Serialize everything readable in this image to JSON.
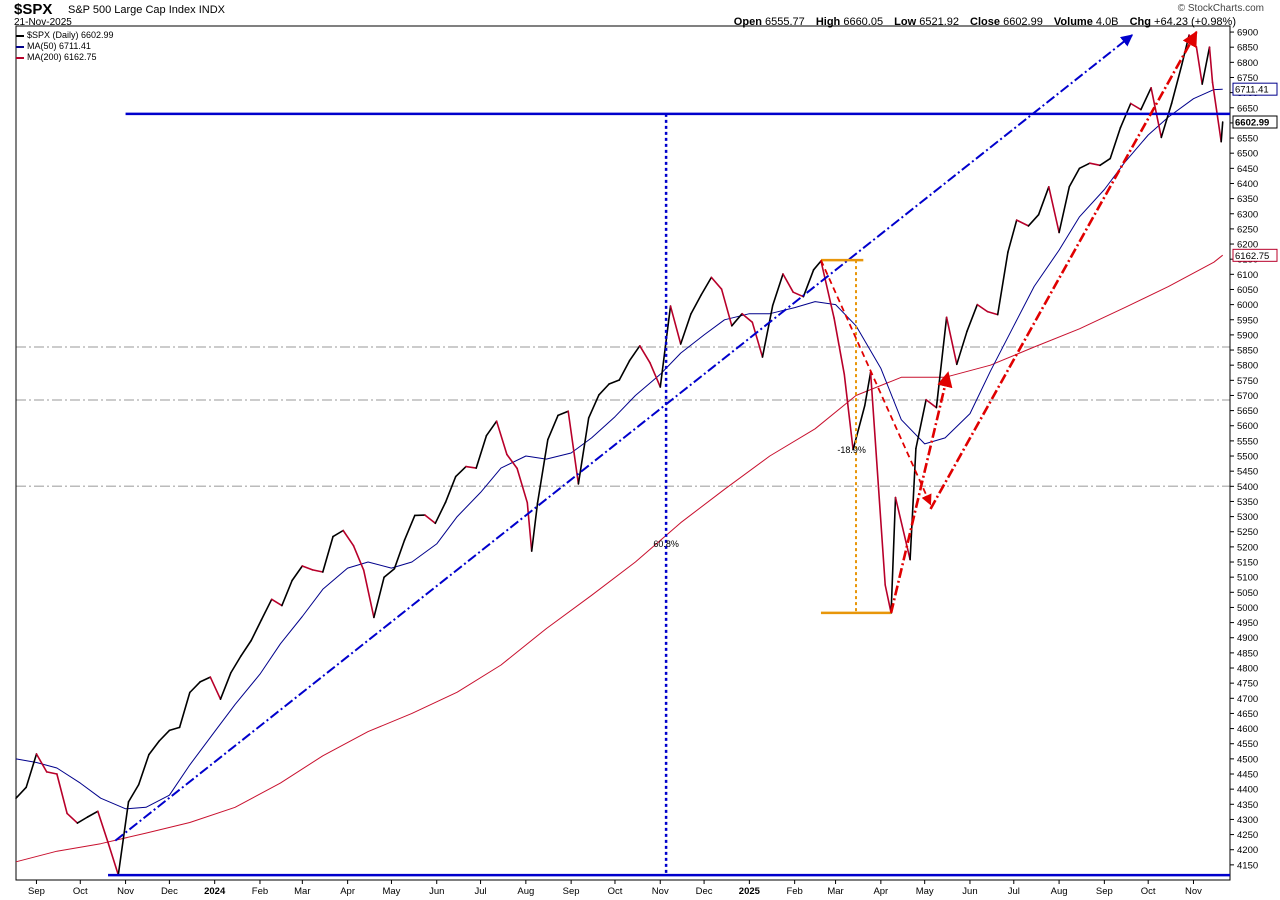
{
  "header": {
    "ticker": "$SPX",
    "name": "S&P 500 Large Cap Index",
    "exchange": "INDX",
    "date": "21-Nov-2025",
    "credit": "© StockCharts.com",
    "open_label": "Open",
    "open": "6555.77",
    "high_label": "High",
    "high": "6660.05",
    "low_label": "Low",
    "low": "6521.92",
    "close_label": "Close",
    "close": "6602.99",
    "volume_label": "Volume",
    "volume": "4.0B",
    "chg_label": "Chg",
    "chg": "+64.23 (+0.98%)"
  },
  "legend": [
    {
      "label": "$SPX (Daily) 6602.99",
      "color": "#000000"
    },
    {
      "label": "MA(50) 6711.41",
      "color": "#00008b"
    },
    {
      "label": "MA(200) 6162.75",
      "color": "#b8002a"
    }
  ],
  "colors": {
    "price_up": "#000000",
    "price_down": "#b8002a",
    "ma50": "#00008b",
    "ma200": "#c8102e",
    "blue_annot": "#0000cc",
    "red_annot": "#e00000",
    "orange_annot": "#e8960a",
    "grid": "#bbbbbb"
  },
  "annotations": {
    "gain_pct": "60.8%",
    "decline_pct": "-18.9%"
  },
  "chart_data": {
    "type": "line",
    "title": "$SPX S&P 500 Large Cap Index INDX",
    "y_scale": "linear",
    "ylim": [
      4100,
      6920
    ],
    "y_ticks": [
      4150,
      4200,
      4250,
      4300,
      4350,
      4400,
      4450,
      4500,
      4550,
      4600,
      4650,
      4700,
      4750,
      4800,
      4850,
      4900,
      4950,
      5000,
      5050,
      5100,
      5150,
      5200,
      5250,
      5300,
      5350,
      5400,
      5450,
      5500,
      5550,
      5600,
      5650,
      5700,
      5750,
      5800,
      5850,
      5900,
      5950,
      6000,
      6050,
      6100,
      6150,
      6200,
      6250,
      6300,
      6350,
      6400,
      6450,
      6500,
      6550,
      6600,
      6650,
      6700,
      6750,
      6800,
      6850,
      6900
    ],
    "x_ticks": [
      {
        "date": "2023-09-01",
        "label": "Sep"
      },
      {
        "date": "2023-10-01",
        "label": "Oct"
      },
      {
        "date": "2023-11-01",
        "label": "Nov"
      },
      {
        "date": "2023-12-01",
        "label": "Dec"
      },
      {
        "date": "2024-01-01",
        "label": "2024",
        "year": true
      },
      {
        "date": "2024-02-01",
        "label": "Feb"
      },
      {
        "date": "2024-03-01",
        "label": "Mar"
      },
      {
        "date": "2024-04-01",
        "label": "Apr"
      },
      {
        "date": "2024-05-01",
        "label": "May"
      },
      {
        "date": "2024-06-01",
        "label": "Jun"
      },
      {
        "date": "2024-07-01",
        "label": "Jul"
      },
      {
        "date": "2024-08-01",
        "label": "Aug"
      },
      {
        "date": "2024-09-01",
        "label": "Sep"
      },
      {
        "date": "2024-10-01",
        "label": "Oct"
      },
      {
        "date": "2024-11-01",
        "label": "Nov"
      },
      {
        "date": "2024-12-01",
        "label": "Dec"
      },
      {
        "date": "2025-01-01",
        "label": "2025",
        "year": true
      },
      {
        "date": "2025-02-01",
        "label": "Feb"
      },
      {
        "date": "2025-03-01",
        "label": "Mar"
      },
      {
        "date": "2025-04-01",
        "label": "Apr"
      },
      {
        "date": "2025-05-01",
        "label": "May"
      },
      {
        "date": "2025-06-01",
        "label": "Jun"
      },
      {
        "date": "2025-07-01",
        "label": "Jul"
      },
      {
        "date": "2025-08-01",
        "label": "Aug"
      },
      {
        "date": "2025-09-01",
        "label": "Sep"
      },
      {
        "date": "2025-10-01",
        "label": "Oct"
      },
      {
        "date": "2025-11-01",
        "label": "Nov"
      }
    ],
    "series": [
      {
        "name": "$SPX (Daily)",
        "points": [
          [
            "2023-08-18",
            4370
          ],
          [
            "2023-08-25",
            4406
          ],
          [
            "2023-09-01",
            4516
          ],
          [
            "2023-09-08",
            4457
          ],
          [
            "2023-09-15",
            4450
          ],
          [
            "2023-09-22",
            4320
          ],
          [
            "2023-09-29",
            4288
          ],
          [
            "2023-10-06",
            4308
          ],
          [
            "2023-10-13",
            4327
          ],
          [
            "2023-10-20",
            4224
          ],
          [
            "2023-10-27",
            4117
          ],
          [
            "2023-11-03",
            4358
          ],
          [
            "2023-11-10",
            4415
          ],
          [
            "2023-11-17",
            4514
          ],
          [
            "2023-11-24",
            4559
          ],
          [
            "2023-12-01",
            4594
          ],
          [
            "2023-12-08",
            4604
          ],
          [
            "2023-12-15",
            4719
          ],
          [
            "2023-12-22",
            4754
          ],
          [
            "2023-12-29",
            4770
          ],
          [
            "2024-01-05",
            4697
          ],
          [
            "2024-01-12",
            4784
          ],
          [
            "2024-01-19",
            4840
          ],
          [
            "2024-01-26",
            4891
          ],
          [
            "2024-02-02",
            4959
          ],
          [
            "2024-02-09",
            5027
          ],
          [
            "2024-02-16",
            5006
          ],
          [
            "2024-02-23",
            5089
          ],
          [
            "2024-03-01",
            5137
          ],
          [
            "2024-03-08",
            5124
          ],
          [
            "2024-03-15",
            5117
          ],
          [
            "2024-03-22",
            5234
          ],
          [
            "2024-03-29",
            5254
          ],
          [
            "2024-04-05",
            5204
          ],
          [
            "2024-04-12",
            5123
          ],
          [
            "2024-04-19",
            4967
          ],
          [
            "2024-04-26",
            5100
          ],
          [
            "2024-05-03",
            5128
          ],
          [
            "2024-05-10",
            5223
          ],
          [
            "2024-05-17",
            5304
          ],
          [
            "2024-05-24",
            5305
          ],
          [
            "2024-05-31",
            5278
          ],
          [
            "2024-06-07",
            5347
          ],
          [
            "2024-06-14",
            5432
          ],
          [
            "2024-06-21",
            5465
          ],
          [
            "2024-06-28",
            5460
          ],
          [
            "2024-07-05",
            5567
          ],
          [
            "2024-07-12",
            5615
          ],
          [
            "2024-07-19",
            5505
          ],
          [
            "2024-07-26",
            5459
          ],
          [
            "2024-08-02",
            5346
          ],
          [
            "2024-08-05",
            5186
          ],
          [
            "2024-08-09",
            5344
          ],
          [
            "2024-08-16",
            5554
          ],
          [
            "2024-08-23",
            5634
          ],
          [
            "2024-08-30",
            5648
          ],
          [
            "2024-09-06",
            5408
          ],
          [
            "2024-09-13",
            5626
          ],
          [
            "2024-09-20",
            5702
          ],
          [
            "2024-09-27",
            5738
          ],
          [
            "2024-10-04",
            5751
          ],
          [
            "2024-10-11",
            5815
          ],
          [
            "2024-10-18",
            5864
          ],
          [
            "2024-10-25",
            5808
          ],
          [
            "2024-11-01",
            5728
          ],
          [
            "2024-11-08",
            5995
          ],
          [
            "2024-11-15",
            5870
          ],
          [
            "2024-11-22",
            5969
          ],
          [
            "2024-11-29",
            6032
          ],
          [
            "2024-12-06",
            6090
          ],
          [
            "2024-12-13",
            6051
          ],
          [
            "2024-12-20",
            5930
          ],
          [
            "2024-12-27",
            5970
          ],
          [
            "2025-01-03",
            5942
          ],
          [
            "2025-01-10",
            5827
          ],
          [
            "2025-01-17",
            5997
          ],
          [
            "2025-01-24",
            6101
          ],
          [
            "2025-01-31",
            6041
          ],
          [
            "2025-02-07",
            6026
          ],
          [
            "2025-02-14",
            6115
          ],
          [
            "2025-02-19",
            6144
          ],
          [
            "2025-02-28",
            5955
          ],
          [
            "2025-03-07",
            5770
          ],
          [
            "2025-03-13",
            5521
          ],
          [
            "2025-03-21",
            5667
          ],
          [
            "2025-03-25",
            5776
          ],
          [
            "2025-04-04",
            5074
          ],
          [
            "2025-04-08",
            4982
          ],
          [
            "2025-04-11",
            5363
          ],
          [
            "2025-04-21",
            5158
          ],
          [
            "2025-04-25",
            5525
          ],
          [
            "2025-05-02",
            5686
          ],
          [
            "2025-05-09",
            5660
          ],
          [
            "2025-05-16",
            5958
          ],
          [
            "2025-05-23",
            5803
          ],
          [
            "2025-05-30",
            5912
          ],
          [
            "2025-06-06",
            6000
          ],
          [
            "2025-06-13",
            5977
          ],
          [
            "2025-06-20",
            5967
          ],
          [
            "2025-06-27",
            6173
          ],
          [
            "2025-07-03",
            6279
          ],
          [
            "2025-07-11",
            6260
          ],
          [
            "2025-07-18",
            6297
          ],
          [
            "2025-07-25",
            6389
          ],
          [
            "2025-08-01",
            6238
          ],
          [
            "2025-08-08",
            6389
          ],
          [
            "2025-08-15",
            6450
          ],
          [
            "2025-08-22",
            6467
          ],
          [
            "2025-08-29",
            6460
          ],
          [
            "2025-09-05",
            6482
          ],
          [
            "2025-09-12",
            6584
          ],
          [
            "2025-09-19",
            6664
          ],
          [
            "2025-09-26",
            6644
          ],
          [
            "2025-10-03",
            6716
          ],
          [
            "2025-10-10",
            6552
          ],
          [
            "2025-10-17",
            6664
          ],
          [
            "2025-10-24",
            6792
          ],
          [
            "2025-10-29",
            6890
          ],
          [
            "2025-11-03",
            6851
          ],
          [
            "2025-11-07",
            6728
          ],
          [
            "2025-11-12",
            6850
          ],
          [
            "2025-11-14",
            6734
          ],
          [
            "2025-11-20",
            6538
          ],
          [
            "2025-11-21",
            6603
          ]
        ]
      },
      {
        "name": "MA(50)",
        "points": [
          [
            "2023-08-18",
            4500
          ],
          [
            "2023-09-01",
            4488
          ],
          [
            "2023-09-15",
            4470
          ],
          [
            "2023-10-01",
            4420
          ],
          [
            "2023-10-15",
            4370
          ],
          [
            "2023-11-01",
            4335
          ],
          [
            "2023-11-15",
            4340
          ],
          [
            "2023-12-01",
            4380
          ],
          [
            "2023-12-15",
            4480
          ],
          [
            "2024-01-01",
            4590
          ],
          [
            "2024-01-15",
            4680
          ],
          [
            "2024-02-01",
            4780
          ],
          [
            "2024-02-15",
            4880
          ],
          [
            "2024-03-01",
            4970
          ],
          [
            "2024-03-15",
            5060
          ],
          [
            "2024-04-01",
            5130
          ],
          [
            "2024-04-15",
            5150
          ],
          [
            "2024-05-01",
            5130
          ],
          [
            "2024-05-15",
            5150
          ],
          [
            "2024-06-01",
            5210
          ],
          [
            "2024-06-15",
            5300
          ],
          [
            "2024-07-01",
            5380
          ],
          [
            "2024-07-15",
            5460
          ],
          [
            "2024-08-01",
            5500
          ],
          [
            "2024-08-15",
            5490
          ],
          [
            "2024-09-01",
            5510
          ],
          [
            "2024-09-15",
            5560
          ],
          [
            "2024-10-01",
            5630
          ],
          [
            "2024-10-15",
            5700
          ],
          [
            "2024-11-01",
            5770
          ],
          [
            "2024-11-15",
            5840
          ],
          [
            "2024-12-01",
            5900
          ],
          [
            "2024-12-15",
            5950
          ],
          [
            "2025-01-01",
            5970
          ],
          [
            "2025-01-15",
            5970
          ],
          [
            "2025-02-01",
            5990
          ],
          [
            "2025-02-15",
            6010
          ],
          [
            "2025-03-01",
            6000
          ],
          [
            "2025-03-15",
            5930
          ],
          [
            "2025-04-01",
            5790
          ],
          [
            "2025-04-15",
            5620
          ],
          [
            "2025-05-01",
            5540
          ],
          [
            "2025-05-15",
            5560
          ],
          [
            "2025-06-01",
            5640
          ],
          [
            "2025-06-15",
            5780
          ],
          [
            "2025-07-01",
            5930
          ],
          [
            "2025-07-15",
            6060
          ],
          [
            "2025-08-01",
            6180
          ],
          [
            "2025-08-15",
            6290
          ],
          [
            "2025-09-01",
            6380
          ],
          [
            "2025-09-15",
            6470
          ],
          [
            "2025-10-01",
            6560
          ],
          [
            "2025-10-15",
            6620
          ],
          [
            "2025-11-01",
            6680
          ],
          [
            "2025-11-15",
            6710
          ],
          [
            "2025-11-21",
            6711
          ]
        ]
      },
      {
        "name": "MA(200)",
        "points": [
          [
            "2023-08-18",
            4160
          ],
          [
            "2023-09-15",
            4195
          ],
          [
            "2023-10-15",
            4220
          ],
          [
            "2023-11-15",
            4255
          ],
          [
            "2023-12-15",
            4290
          ],
          [
            "2024-01-15",
            4340
          ],
          [
            "2024-02-15",
            4420
          ],
          [
            "2024-03-15",
            4510
          ],
          [
            "2024-04-15",
            4590
          ],
          [
            "2024-05-15",
            4650
          ],
          [
            "2024-06-15",
            4720
          ],
          [
            "2024-07-15",
            4810
          ],
          [
            "2024-08-15",
            4930
          ],
          [
            "2024-09-15",
            5040
          ],
          [
            "2024-10-15",
            5150
          ],
          [
            "2024-11-15",
            5280
          ],
          [
            "2024-12-15",
            5390
          ],
          [
            "2025-01-15",
            5500
          ],
          [
            "2025-02-15",
            5590
          ],
          [
            "2025-03-15",
            5700
          ],
          [
            "2025-04-15",
            5760
          ],
          [
            "2025-05-15",
            5760
          ],
          [
            "2025-06-15",
            5800
          ],
          [
            "2025-07-15",
            5860
          ],
          [
            "2025-08-15",
            5920
          ],
          [
            "2025-09-15",
            5990
          ],
          [
            "2025-10-15",
            6060
          ],
          [
            "2025-11-15",
            6140
          ],
          [
            "2025-11-21",
            6163
          ]
        ]
      }
    ],
    "horizontal_lines": [
      {
        "value": 6630,
        "color": "blue"
      },
      {
        "value": 4116,
        "color": "blue"
      },
      {
        "value": 5860,
        "color": "grey"
      },
      {
        "value": 5685,
        "color": "grey"
      },
      {
        "value": 5400,
        "color": "grey"
      }
    ],
    "y_axis_tags": [
      {
        "value": 6711.41,
        "label": "6711.41",
        "color": "#00008b"
      },
      {
        "value": 6602.99,
        "label": "6602.99",
        "color": "#000000",
        "bold": true
      },
      {
        "value": 6162.75,
        "label": "6162.75",
        "color": "#b8002a"
      }
    ]
  }
}
